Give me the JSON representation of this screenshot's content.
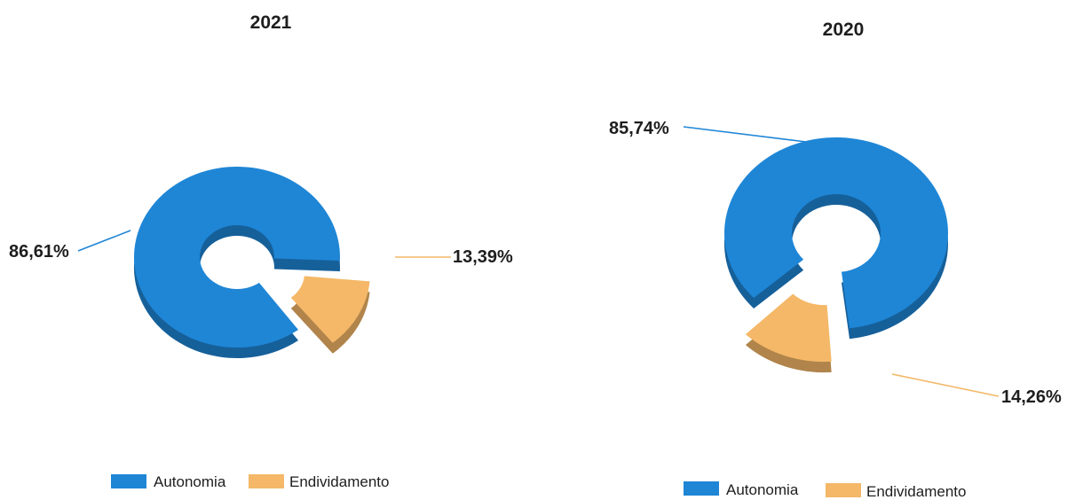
{
  "chart_data": [
    {
      "type": "pie",
      "title": "2021",
      "categories": [
        "Autonomia",
        "Endividamento"
      ],
      "values": [
        86.61,
        13.39
      ],
      "data_labels": [
        "86,61%",
        "13,39%"
      ],
      "colors": [
        "#1f86d6",
        "#f4b868"
      ],
      "legend": {
        "placement": "bottom",
        "entries": [
          "Autonomia",
          "Endividamento"
        ]
      }
    },
    {
      "type": "pie",
      "title": "2020",
      "categories": [
        "Autonomia",
        "Endividamento"
      ],
      "values": [
        85.74,
        14.26
      ],
      "data_labels": [
        "85,74%",
        "14,26%"
      ],
      "colors": [
        "#1f86d6",
        "#f4b868"
      ],
      "legend": {
        "placement": "bottom",
        "entries": [
          "Autonomia",
          "Endividamento"
        ]
      }
    }
  ]
}
